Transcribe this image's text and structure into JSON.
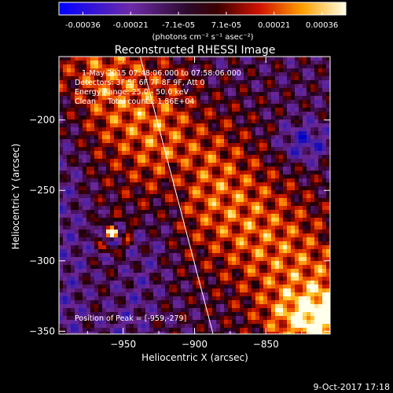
{
  "chart_data": {
    "type": "heatmap",
    "title": "Reconstructed RHESSI Image",
    "xlabel": "Heliocentric X (arcsec)",
    "ylabel": "Heliocentric Y (arcsec)",
    "xlim": [
      -995,
      -805
    ],
    "ylim": [
      -352,
      -155
    ],
    "x_ticks": [
      -950,
      -900,
      -850
    ],
    "y_ticks": [
      -350,
      -300,
      -250,
      -200
    ],
    "colorbar": {
      "label": "(photons cm⁻² s⁻¹ asec⁻²)",
      "ticks": [
        "-0.00036",
        "-0.00021",
        "-7.1e-05",
        "7.1e-05",
        "0.00021",
        "0.00036"
      ],
      "min": -0.00036,
      "max": 0.00036
    },
    "annotations": [
      "1-May-2015 07:48:06.000 to 07:58:06.000",
      "Detectors: 3F 5F 6F 7F 8F 9F, Att 0",
      "Energy Range: 25.0 - 50.0 keV",
      "Clean     Total counts: 1.86E+04"
    ],
    "peak_label": "Position of Peak = [-959,-279]",
    "peak": [
      -959,
      -279
    ],
    "limb_line": [
      [
        -938,
        -155
      ],
      [
        -887,
        -352
      ]
    ]
  },
  "footer": {
    "date": "9-Oct-2017 17:18"
  }
}
